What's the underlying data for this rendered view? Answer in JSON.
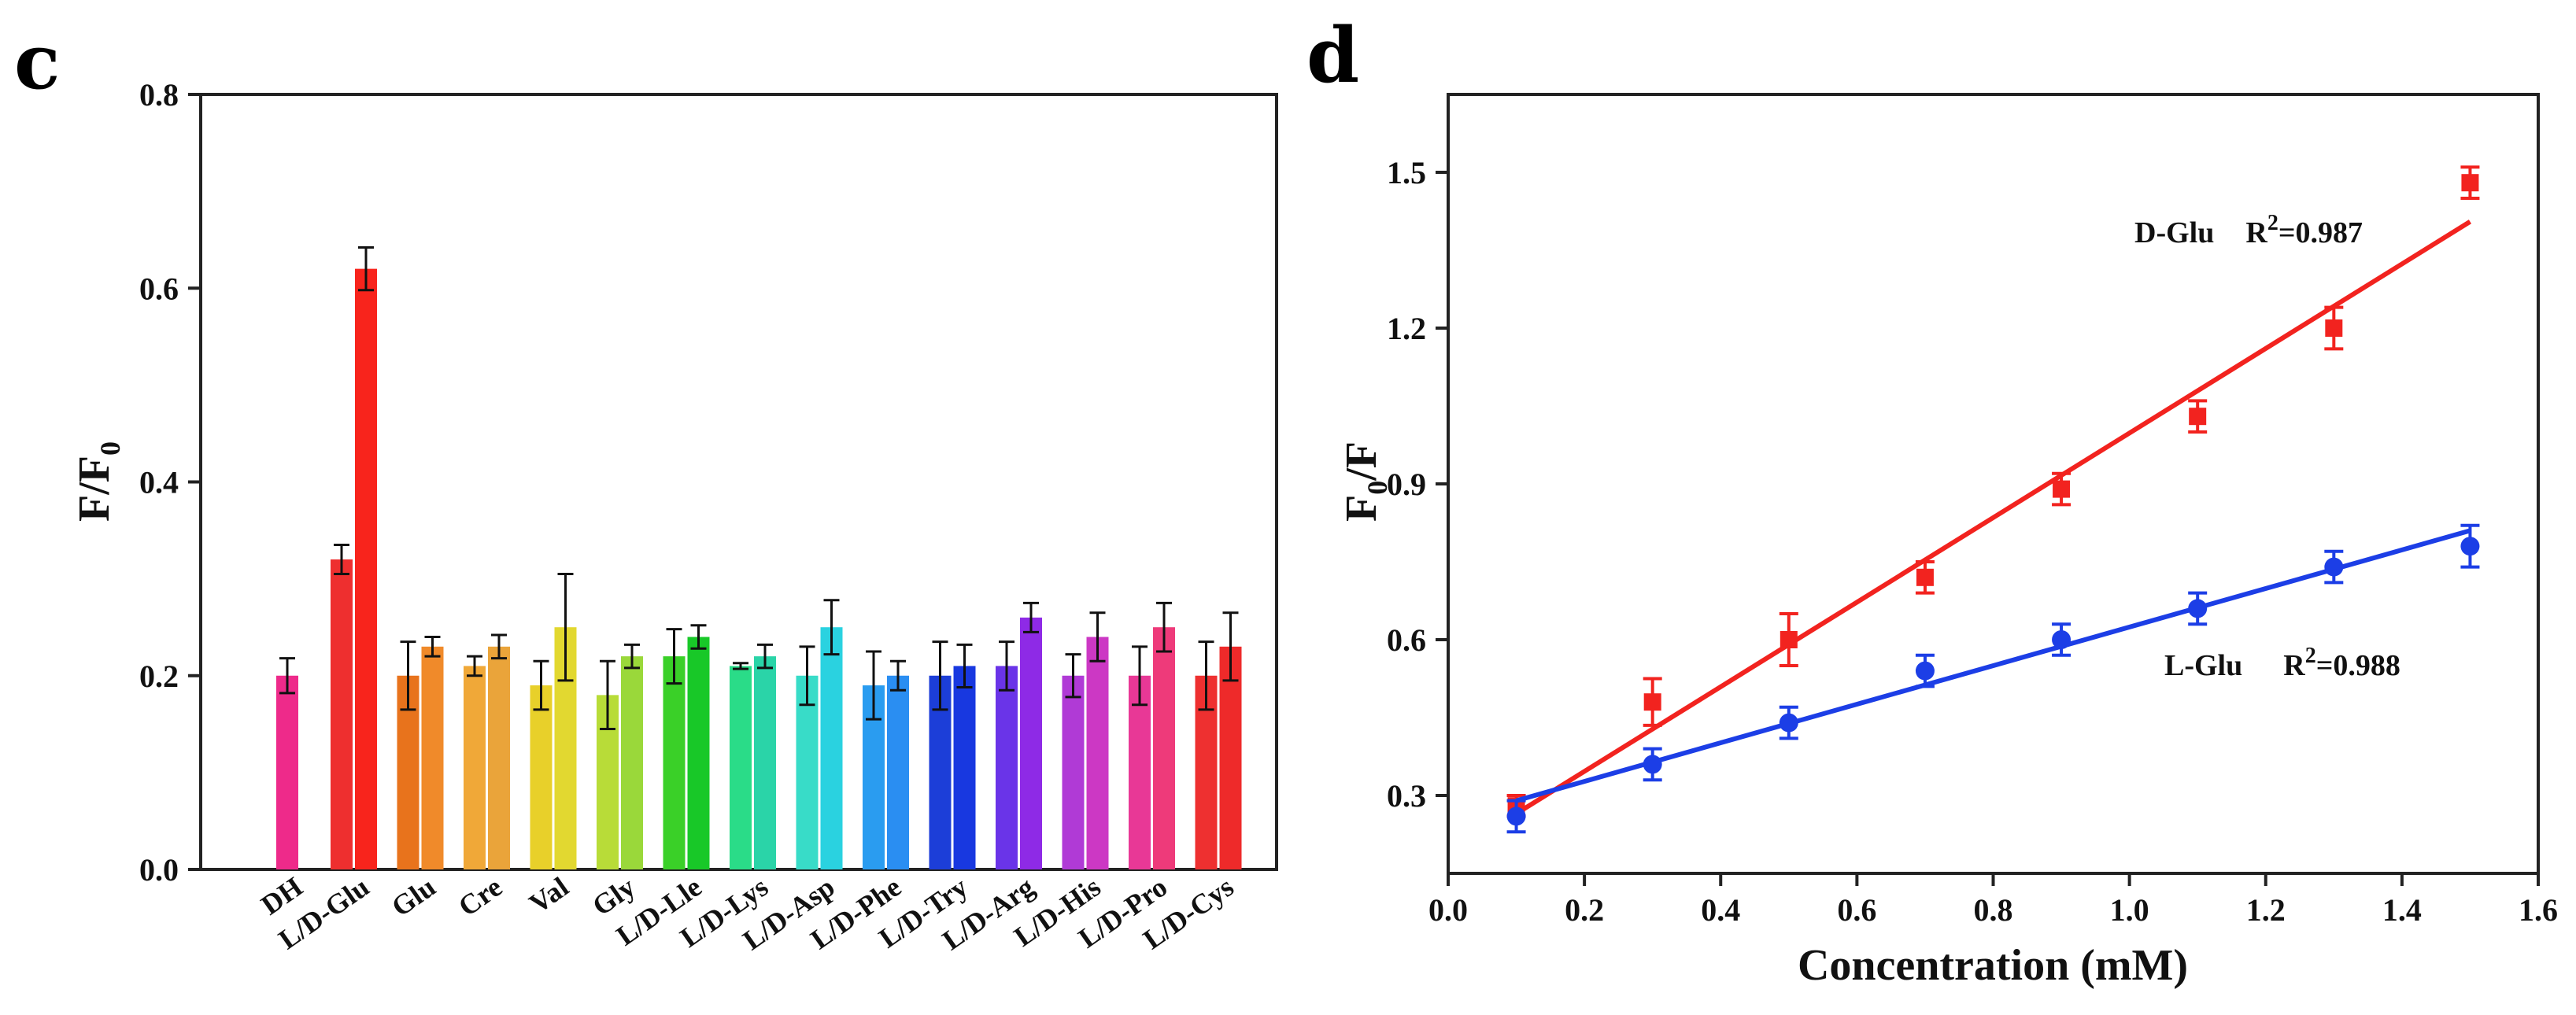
{
  "chart_data": [
    {
      "panel": "c",
      "type": "bar",
      "ylabel": "F/F",
      "ylabel_sub": "0",
      "ylim": [
        0.0,
        0.8
      ],
      "yticks": [
        "0.0",
        "0.2",
        "0.4",
        "0.6",
        "0.8"
      ],
      "categories": [
        "DH",
        "L/D-Glu",
        "Glu",
        "Cre",
        "Val",
        "Gly",
        "L/D-Lle",
        "L/D-Lys",
        "L/D-Asp",
        "L/D-Phe",
        "L/D-Try",
        "L/D-Arg",
        "L/D-His",
        "L/D-Pro",
        "L/D-Cys"
      ],
      "bars": [
        [
          {
            "value": 0.2,
            "err": 0.018,
            "color": "#ee2a8a"
          }
        ],
        [
          {
            "value": 0.32,
            "err": 0.015,
            "color": "#ee2f2f"
          },
          {
            "value": 0.62,
            "err": 0.022,
            "color": "#f8241c"
          }
        ],
        [
          {
            "value": 0.2,
            "err": 0.035,
            "color": "#e8731c"
          },
          {
            "value": 0.23,
            "err": 0.01,
            "color": "#f08a2a"
          }
        ],
        [
          {
            "value": 0.21,
            "err": 0.01,
            "color": "#f0a838"
          },
          {
            "value": 0.23,
            "err": 0.012,
            "color": "#eaa43a"
          }
        ],
        [
          {
            "value": 0.19,
            "err": 0.025,
            "color": "#e8d02a"
          },
          {
            "value": 0.25,
            "err": 0.055,
            "color": "#e2d830"
          }
        ],
        [
          {
            "value": 0.18,
            "err": 0.035,
            "color": "#b8dc38"
          },
          {
            "value": 0.22,
            "err": 0.012,
            "color": "#9ad83a"
          }
        ],
        [
          {
            "value": 0.22,
            "err": 0.028,
            "color": "#3ad028"
          },
          {
            "value": 0.24,
            "err": 0.012,
            "color": "#18c828"
          }
        ],
        [
          {
            "value": 0.21,
            "err": 0.003,
            "color": "#2adc88"
          },
          {
            "value": 0.22,
            "err": 0.012,
            "color": "#2ad4a8"
          }
        ],
        [
          {
            "value": 0.2,
            "err": 0.03,
            "color": "#38dcc8"
          },
          {
            "value": 0.25,
            "err": 0.028,
            "color": "#2ad2e0"
          }
        ],
        [
          {
            "value": 0.19,
            "err": 0.035,
            "color": "#2a9cf0"
          },
          {
            "value": 0.2,
            "err": 0.015,
            "color": "#2a8ef2"
          }
        ],
        [
          {
            "value": 0.2,
            "err": 0.035,
            "color": "#1c3ed8"
          },
          {
            "value": 0.21,
            "err": 0.022,
            "color": "#1838e0"
          }
        ],
        [
          {
            "value": 0.21,
            "err": 0.025,
            "color": "#6a34e8"
          },
          {
            "value": 0.26,
            "err": 0.015,
            "color": "#8e2ae6"
          }
        ],
        [
          {
            "value": 0.2,
            "err": 0.022,
            "color": "#b03ad6"
          },
          {
            "value": 0.24,
            "err": 0.025,
            "color": "#cc38c4"
          }
        ],
        [
          {
            "value": 0.2,
            "err": 0.03,
            "color": "#e83896"
          },
          {
            "value": 0.25,
            "err": 0.025,
            "color": "#ee3a7a"
          }
        ],
        [
          {
            "value": 0.2,
            "err": 0.035,
            "color": "#ee3030"
          },
          {
            "value": 0.23,
            "err": 0.035,
            "color": "#ee2a2a"
          }
        ]
      ]
    },
    {
      "panel": "d",
      "type": "scatter",
      "xlabel": "Concentration (mM)",
      "ylabel": "F",
      "ylabel_sub": "0",
      "ylabel_tail": "/F",
      "xlim": [
        0.0,
        1.6
      ],
      "ylim": [
        0.15,
        1.65
      ],
      "xticks": [
        "0.0",
        "0.2",
        "0.4",
        "0.6",
        "0.8",
        "1.0",
        "1.2",
        "1.4",
        "1.6"
      ],
      "yticks": [
        "0.3",
        "0.6",
        "0.9",
        "1.2",
        "1.5"
      ],
      "series": [
        {
          "name": "D-Glu",
          "color": "#f2231f",
          "x": [
            0.1,
            0.3,
            0.5,
            0.7,
            0.9,
            1.1,
            1.3,
            1.5
          ],
          "y": [
            0.28,
            0.48,
            0.6,
            0.72,
            0.89,
            1.03,
            1.2,
            1.48
          ],
          "err": [
            0.02,
            0.045,
            0.05,
            0.03,
            0.03,
            0.03,
            0.04,
            0.03
          ],
          "fit": [
            [
              0.1,
              0.265
            ],
            [
              1.5,
              1.405
            ]
          ],
          "r2_label": "R",
          "r2_sup": "2",
          "r2_value": "=0.987"
        },
        {
          "name": "L-Glu",
          "color": "#1c3ee6",
          "x": [
            0.1,
            0.3,
            0.5,
            0.7,
            0.9,
            1.1,
            1.3,
            1.5
          ],
          "y": [
            0.26,
            0.36,
            0.44,
            0.54,
            0.6,
            0.66,
            0.74,
            0.78
          ],
          "err": [
            0.03,
            0.03,
            0.03,
            0.03,
            0.03,
            0.03,
            0.03,
            0.04
          ],
          "fit": [
            [
              0.1,
              0.29
            ],
            [
              1.5,
              0.81
            ]
          ],
          "r2_label": "R",
          "r2_sup": "2",
          "r2_value": "=0.988"
        }
      ]
    }
  ]
}
